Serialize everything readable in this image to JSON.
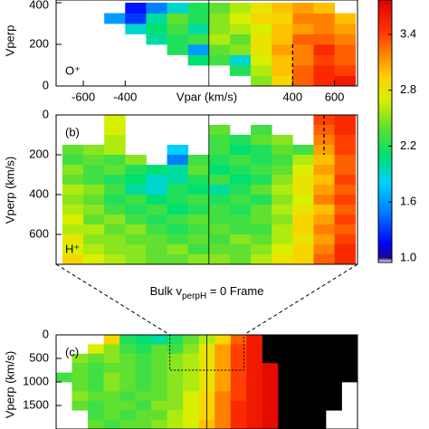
{
  "chart_data": [
    {
      "type": "heatmap",
      "species": "O⁺",
      "species_color": "#e8261b",
      "ylabel": "Vperp",
      "xlabel": "Vpar (km/s)",
      "xlim": [
        -730,
        710
      ],
      "xticks": [
        -600,
        -400,
        400,
        600
      ],
      "ylim": [
        0,
        413
      ],
      "yticks": [
        0,
        200,
        400
      ],
      "y_inverted": false,
      "zero_line": true,
      "boundary": {
        "x": 400,
        "y": [
          0,
          200
        ]
      },
      "x_edges": [
        -700,
        -600,
        -500,
        -400,
        -300,
        -200,
        -100,
        0,
        100,
        200,
        300,
        400,
        500,
        600,
        700
      ],
      "y_edges": [
        0,
        50,
        100,
        150,
        200,
        250,
        300,
        350,
        400
      ],
      "z": [
        [
          null,
          null,
          null,
          null,
          null,
          null,
          null,
          null,
          null,
          2.5,
          2.9,
          3.3,
          3.5,
          3.6
        ],
        [
          null,
          null,
          null,
          null,
          null,
          null,
          null,
          null,
          2.2,
          2.6,
          3.0,
          3.3,
          3.5,
          3.4
        ],
        [
          null,
          null,
          null,
          null,
          null,
          null,
          2.1,
          2.3,
          1.9,
          2.7,
          3.0,
          3.2,
          3.4,
          3.3
        ],
        [
          null,
          null,
          null,
          null,
          null,
          2.2,
          1.6,
          2.4,
          2.5,
          2.8,
          3.1,
          3.2,
          3.5,
          3.3
        ],
        [
          null,
          null,
          null,
          null,
          2.0,
          2.2,
          2.3,
          2.6,
          2.4,
          2.8,
          3.0,
          3.3,
          3.3,
          3.2
        ],
        [
          null,
          null,
          null,
          1.9,
          2.1,
          2.3,
          2.0,
          2.5,
          2.6,
          2.7,
          3.0,
          3.1,
          3.2,
          3.1
        ],
        [
          null,
          null,
          1.6,
          1.3,
          2.0,
          2.4,
          2.2,
          2.5,
          2.7,
          2.9,
          2.9,
          3.2,
          3.2,
          3.0
        ],
        [
          null,
          null,
          null,
          1.2,
          1.5,
          1.9,
          2.2,
          2.4,
          2.6,
          2.8,
          3.0,
          3.1,
          3.0,
          null
        ]
      ]
    },
    {
      "type": "heatmap",
      "panel_label": "(b)",
      "species": "H⁺",
      "species_color": "#1f3bd6",
      "ylabel": "Vperp (km/s)",
      "xlim": [
        -730,
        710
      ],
      "ylim": [
        0,
        750
      ],
      "yticks": [
        0,
        200,
        400,
        600
      ],
      "y_inverted": true,
      "zero_line": true,
      "boundary": {
        "x": 550,
        "y": [
          0,
          200
        ]
      },
      "x_edges": [
        -700,
        -600,
        -500,
        -400,
        -300,
        -200,
        -100,
        0,
        100,
        200,
        300,
        400,
        500,
        600,
        700
      ],
      "y_edges": [
        0,
        50,
        100,
        150,
        200,
        250,
        300,
        350,
        400,
        450,
        500,
        550,
        600,
        650,
        700,
        750
      ],
      "z": [
        [
          null,
          null,
          2.7,
          null,
          null,
          null,
          null,
          null,
          null,
          null,
          null,
          null,
          3.4,
          3.5
        ],
        [
          null,
          null,
          2.7,
          null,
          null,
          null,
          null,
          2.4,
          null,
          2.3,
          null,
          null,
          3.3,
          3.5
        ],
        [
          null,
          null,
          2.6,
          null,
          null,
          null,
          null,
          2.3,
          2.2,
          2.4,
          2.5,
          null,
          3.2,
          3.4
        ],
        [
          2.4,
          2.5,
          2.6,
          null,
          null,
          1.8,
          null,
          2.3,
          2.1,
          2.2,
          2.4,
          2.3,
          3.1,
          3.4
        ],
        [
          2.3,
          2.4,
          2.3,
          2.5,
          null,
          1.5,
          2.3,
          2.2,
          2.3,
          2.2,
          2.3,
          2.6,
          3.0,
          3.3
        ],
        [
          2.5,
          2.3,
          2.4,
          2.2,
          2.1,
          2.0,
          2.4,
          2.1,
          2.2,
          2.3,
          2.4,
          2.7,
          3.1,
          3.3
        ],
        [
          2.4,
          2.3,
          2.2,
          2.1,
          1.9,
          2.0,
          2.2,
          2.3,
          2.1,
          2.2,
          2.5,
          2.8,
          3.0,
          3.4
        ],
        [
          2.6,
          2.5,
          2.3,
          2.0,
          1.9,
          2.2,
          2.1,
          2.0,
          2.2,
          2.4,
          2.6,
          2.8,
          3.1,
          3.3
        ],
        [
          2.5,
          2.4,
          2.2,
          2.3,
          2.1,
          2.2,
          2.3,
          2.2,
          2.3,
          2.2,
          2.5,
          2.7,
          3.2,
          3.4
        ],
        [
          2.6,
          2.5,
          2.3,
          2.2,
          2.3,
          2.1,
          2.2,
          2.3,
          2.2,
          2.4,
          2.6,
          2.8,
          3.0,
          3.3
        ],
        [
          2.7,
          2.4,
          2.5,
          2.3,
          2.2,
          2.3,
          2.4,
          2.3,
          2.3,
          2.4,
          2.5,
          2.9,
          3.1,
          3.4
        ],
        [
          2.6,
          2.6,
          2.4,
          2.5,
          2.3,
          2.2,
          2.3,
          2.4,
          2.3,
          2.3,
          2.6,
          2.9,
          3.2,
          3.3
        ],
        [
          2.8,
          2.5,
          2.5,
          2.4,
          2.4,
          2.3,
          2.4,
          2.3,
          2.5,
          2.4,
          2.6,
          2.8,
          3.1,
          3.4
        ],
        [
          2.7,
          2.6,
          2.5,
          2.5,
          2.4,
          2.5,
          2.3,
          2.4,
          2.4,
          2.5,
          2.7,
          2.9,
          3.2,
          3.5
        ],
        [
          2.9,
          2.7,
          2.6,
          2.5,
          2.4,
          2.4,
          2.5,
          2.5,
          2.4,
          2.6,
          2.8,
          2.9,
          3.3,
          3.5
        ]
      ]
    },
    {
      "type": "heatmap",
      "panel_label": "(c)",
      "ylabel": "Vperp (km/s)",
      "frame_label": {
        "text": "Bulk v",
        "sub": "perpH",
        "rest": " = 0 Frame"
      },
      "xlim": [
        -2850,
        2850
      ],
      "ylim": [
        0,
        2000
      ],
      "yticks": [
        0,
        500,
        1000,
        1500
      ],
      "y_inverted": true,
      "zero_line": true,
      "over_color": "#000000",
      "zoom_box": {
        "x": [
          -700,
          700
        ],
        "y": [
          0,
          750
        ]
      },
      "x_edges": [
        -2850,
        -2550,
        -2250,
        -1950,
        -1650,
        -1350,
        -1050,
        -750,
        -450,
        -150,
        150,
        450,
        750,
        1050,
        1350,
        1650,
        1950,
        2250,
        2550,
        2850
      ],
      "y_edges": [
        0,
        200,
        400,
        600,
        800,
        1000,
        1200,
        1400,
        1600,
        1800,
        2000
      ],
      "z": [
        [
          null,
          null,
          null,
          2.9,
          2.2,
          2.1,
          2.0,
          2.2,
          2.4,
          2.6,
          2.9,
          3.3,
          3.6,
          4.0,
          4.0,
          4.0,
          4.0,
          4.0,
          4.0
        ],
        [
          null,
          null,
          2.7,
          2.5,
          2.3,
          2.2,
          2.4,
          2.3,
          2.5,
          2.8,
          3.1,
          3.4,
          3.6,
          4.0,
          4.0,
          4.0,
          4.0,
          4.0,
          4.0
        ],
        [
          null,
          2.5,
          2.4,
          2.5,
          2.4,
          2.3,
          2.4,
          2.5,
          2.6,
          2.8,
          3.1,
          3.4,
          3.6,
          4.0,
          4.0,
          4.0,
          4.0,
          4.0,
          4.0
        ],
        [
          null,
          2.4,
          2.3,
          2.4,
          2.4,
          2.3,
          2.4,
          2.5,
          2.6,
          2.8,
          3.1,
          3.4,
          3.6,
          3.7,
          4.0,
          4.0,
          4.0,
          4.0,
          4.0
        ],
        [
          2.3,
          2.4,
          2.3,
          2.5,
          2.4,
          2.3,
          2.4,
          2.5,
          2.6,
          2.8,
          3.1,
          3.4,
          3.6,
          3.7,
          4.0,
          4.0,
          4.0,
          4.0,
          4.0
        ],
        [
          null,
          2.4,
          2.3,
          2.5,
          2.4,
          2.3,
          2.4,
          2.5,
          2.6,
          2.8,
          3.1,
          3.4,
          3.6,
          3.7,
          4.0,
          4.0,
          4.0,
          4.0,
          null
        ],
        [
          null,
          2.5,
          2.4,
          2.4,
          2.3,
          2.4,
          2.4,
          2.5,
          2.7,
          2.9,
          3.2,
          3.4,
          3.6,
          3.7,
          4.0,
          4.0,
          4.0,
          4.0,
          null
        ],
        [
          null,
          2.4,
          2.3,
          2.4,
          2.4,
          2.3,
          2.5,
          2.5,
          2.7,
          2.9,
          3.2,
          3.5,
          3.6,
          3.7,
          4.0,
          4.0,
          4.0,
          4.0,
          null
        ],
        [
          null,
          null,
          2.3,
          2.4,
          2.3,
          2.4,
          2.4,
          2.6,
          2.7,
          2.9,
          3.2,
          3.5,
          3.6,
          3.7,
          4.0,
          4.0,
          4.0,
          null,
          null
        ],
        [
          null,
          null,
          2.4,
          2.3,
          2.4,
          2.4,
          2.5,
          2.6,
          2.7,
          3.0,
          3.2,
          3.5,
          3.6,
          3.7,
          4.0,
          4.0,
          4.0,
          null,
          null
        ]
      ]
    },
    {
      "type": "colorbar",
      "clim": [
        0.95,
        3.77
      ],
      "ticks": [
        {
          "value": 1,
          "label": "1.0"
        },
        1.6,
        2.2,
        2.8,
        3.4
      ],
      "colorscale": [
        [
          0.95,
          "#ffffff"
        ],
        [
          1.0,
          "#1a0a8c"
        ],
        [
          1.15,
          "#0000ff"
        ],
        [
          1.5,
          "#0080ff"
        ],
        [
          1.8,
          "#00d0ff"
        ],
        [
          2.1,
          "#00e070"
        ],
        [
          2.4,
          "#60e030"
        ],
        [
          2.7,
          "#d8f000"
        ],
        [
          2.95,
          "#ffd000"
        ],
        [
          3.2,
          "#ff8000"
        ],
        [
          3.45,
          "#ff3000"
        ],
        [
          3.77,
          "#e00000"
        ]
      ]
    }
  ]
}
